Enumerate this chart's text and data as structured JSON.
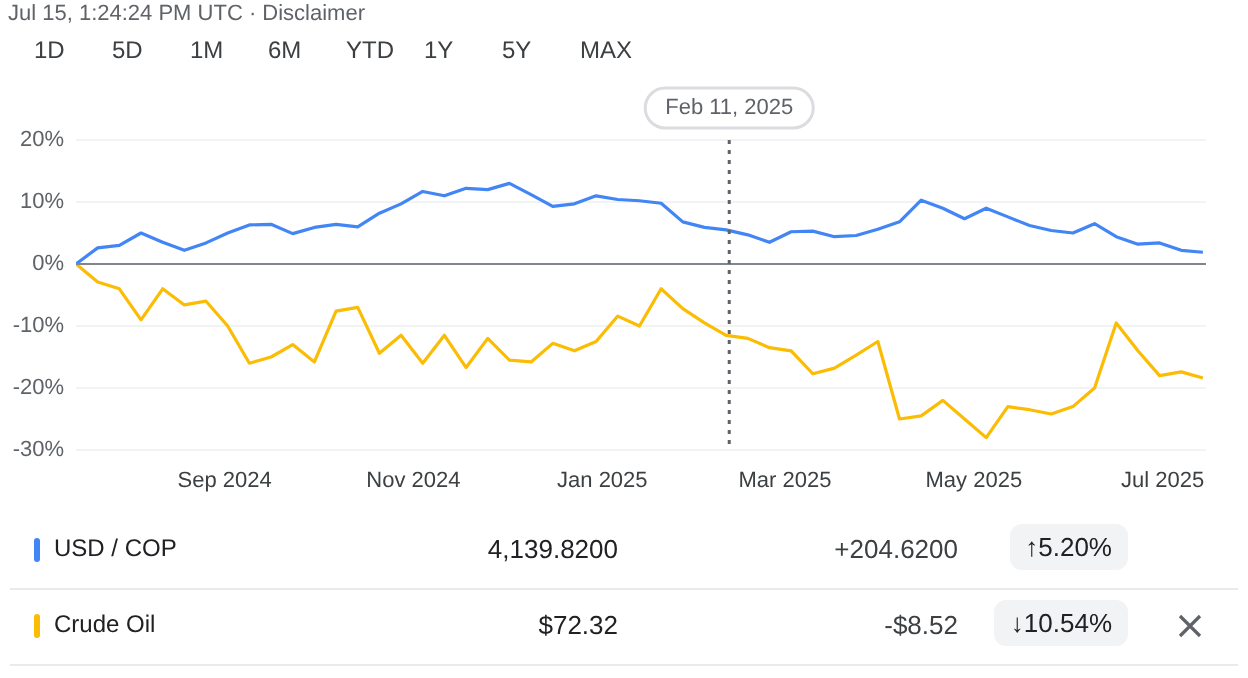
{
  "chart_data": {
    "type": "line",
    "annotations": [
      "Jul 15, 1:24:24 PM UTC · Disclaimer",
      "1D",
      "5D",
      "1M",
      "6M",
      "YTD",
      "1Y",
      "5Y",
      "MAX",
      "4,139.8200",
      "+204.6200",
      "↑5.20%",
      "$72.32",
      "-$8.52",
      "↓10.54%"
    ],
    "x": [
      "2024-07-15",
      "2024-07-22",
      "2024-07-29",
      "2024-08-05",
      "2024-08-12",
      "2024-08-19",
      "2024-08-26",
      "2024-09-02",
      "2024-09-09",
      "2024-09-16",
      "2024-09-23",
      "2024-09-30",
      "2024-10-07",
      "2024-10-14",
      "2024-10-21",
      "2024-10-28",
      "2024-11-04",
      "2024-11-11",
      "2024-11-18",
      "2024-11-25",
      "2024-12-02",
      "2024-12-09",
      "2024-12-16",
      "2024-12-23",
      "2024-12-30",
      "2025-01-06",
      "2025-01-13",
      "2025-01-20",
      "2025-01-27",
      "2025-02-03",
      "2025-02-10",
      "2025-02-17",
      "2025-02-24",
      "2025-03-03",
      "2025-03-10",
      "2025-03-17",
      "2025-03-24",
      "2025-03-31",
      "2025-04-07",
      "2025-04-14",
      "2025-04-21",
      "2025-04-28",
      "2025-05-05",
      "2025-05-12",
      "2025-05-19",
      "2025-05-26",
      "2025-06-02",
      "2025-06-09",
      "2025-06-16",
      "2025-06-23",
      "2025-06-30",
      "2025-07-07",
      "2025-07-14"
    ],
    "series": [
      {
        "name": "USD / COP",
        "color": "#4285f4",
        "values": [
          0,
          2.6,
          3.0,
          5.0,
          3.5,
          2.2,
          3.4,
          5.0,
          6.3,
          6.4,
          4.9,
          5.9,
          6.4,
          6.0,
          8.2,
          9.7,
          11.7,
          11.0,
          12.2,
          12.0,
          13.0,
          11.2,
          9.3,
          9.7,
          11.0,
          10.4,
          10.2,
          9.8,
          6.8,
          5.9,
          5.5,
          4.7,
          3.5,
          5.2,
          5.3,
          4.4,
          4.6,
          5.6,
          6.8,
          10.3,
          9.0,
          7.3,
          9.0,
          7.6,
          6.2,
          5.4,
          5.0,
          6.5,
          4.4,
          3.2,
          3.4,
          2.2,
          1.9
        ]
      },
      {
        "name": "Crude Oil",
        "color": "#fbbc04",
        "values": [
          0,
          -2.9,
          -4.0,
          -9.0,
          -4.0,
          -6.6,
          -6.0,
          -10.0,
          -16.0,
          -15.0,
          -13.0,
          -15.8,
          -7.6,
          -7.0,
          -14.4,
          -11.5,
          -16.0,
          -11.5,
          -16.7,
          -12.0,
          -15.5,
          -15.8,
          -12.8,
          -14.0,
          -12.5,
          -8.4,
          -10.0,
          -4.0,
          -7.2,
          -9.5,
          -11.5,
          -12.0,
          -13.5,
          -14.0,
          -17.7,
          -16.8,
          -14.7,
          -12.5,
          -25.0,
          -24.5,
          -22.0,
          -25.0,
          -28.0,
          -23.0,
          -23.5,
          -24.2,
          -23.0,
          -20.0,
          -9.5,
          -14.0,
          -18.0,
          -17.4,
          -18.4
        ]
      }
    ],
    "xlim": [
      "2024-07-15",
      "2025-07-15"
    ],
    "xticks": [
      {
        "value": "2024-09-01",
        "label": "Sep 2024"
      },
      {
        "value": "2024-11-01",
        "label": "Nov 2024"
      },
      {
        "value": "2025-01-01",
        "label": "Jan 2025"
      },
      {
        "value": "2025-03-01",
        "label": "Mar 2025"
      },
      {
        "value": "2025-05-01",
        "label": "May 2025"
      },
      {
        "value": "2025-07-01",
        "label": "Jul 2025"
      }
    ],
    "ylim": [
      -30,
      20
    ],
    "yticks": [
      {
        "value": -30,
        "label": "-30%"
      },
      {
        "value": -20,
        "label": "-20%"
      },
      {
        "value": -10,
        "label": "-10%"
      },
      {
        "value": 0,
        "label": "0%"
      },
      {
        "value": 10,
        "label": "10%"
      },
      {
        "value": 20,
        "label": "20%"
      }
    ],
    "ref_lines": [
      {
        "axis": "y",
        "value": 0,
        "color": "#80868b"
      },
      {
        "axis": "x",
        "value": "2025-02-11",
        "label": "Feb 11, 2025",
        "color": "#5f6368",
        "line_style": "dotted"
      }
    ],
    "grid": "y",
    "legend": "bottom",
    "marker": "none",
    "line_style": "solid"
  }
}
